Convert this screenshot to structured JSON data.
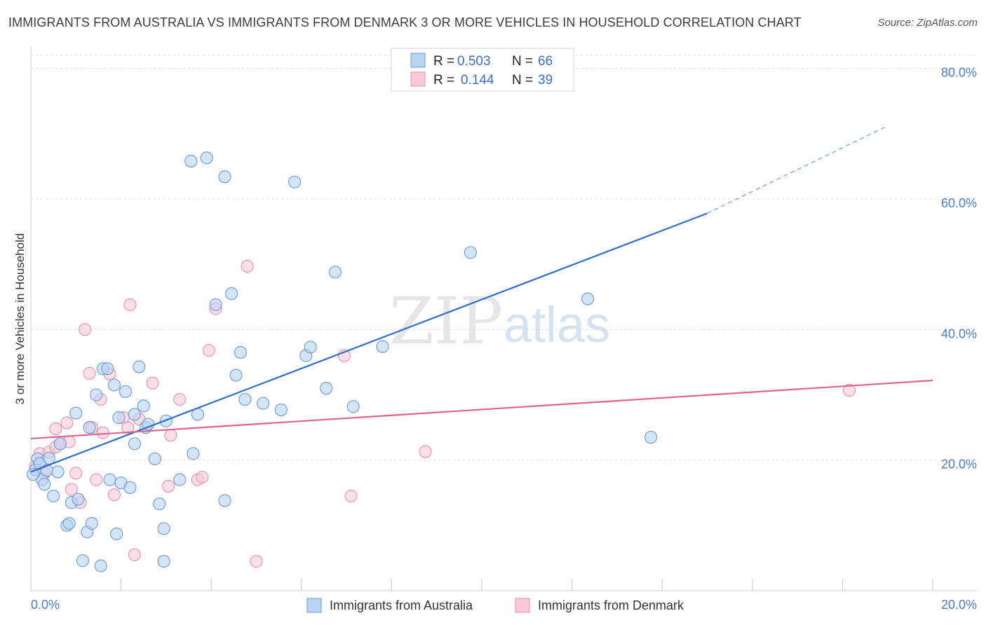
{
  "header": {
    "title": "IMMIGRANTS FROM AUSTRALIA VS IMMIGRANTS FROM DENMARK 3 OR MORE VEHICLES IN HOUSEHOLD CORRELATION CHART",
    "source": "Source: ZipAtlas.com"
  },
  "watermark": {
    "zip": "ZIP",
    "atlas": "atlas"
  },
  "legend": {
    "rows": [
      {
        "r_label": "R =",
        "r_value": "0.503",
        "n_label": "N =",
        "n_value": "66"
      },
      {
        "r_label": "R =",
        "r_value": "0.144",
        "n_label": "N =",
        "n_value": "39"
      }
    ]
  },
  "colors": {
    "australia_fill": "#b9d3f3",
    "australia_stroke": "#6b9ad8",
    "australia_line": "#2e6fd1",
    "denmark_fill": "#f8c9d8",
    "denmark_stroke": "#e990ad",
    "denmark_line": "#e0628f",
    "grid": "#dcdcdc",
    "axis_tick": "#4a7cc9"
  },
  "chart_data": {
    "type": "scatter",
    "title": "IMMIGRANTS FROM AUSTRALIA VS IMMIGRANTS FROM DENMARK 3 OR MORE VEHICLES IN HOUSEHOLD CORRELATION CHART",
    "xlabel": "",
    "ylabel": "3 or more Vehicles in Household",
    "xlim": [
      0,
      20
    ],
    "ylim": [
      0,
      82
    ],
    "x_tick_labels": [
      "0.0%",
      "20.0%"
    ],
    "y_tick_values": [
      20,
      40,
      60,
      80
    ],
    "y_tick_labels": [
      "20.0%",
      "40.0%",
      "60.0%",
      "80.0%"
    ],
    "grid": true,
    "legend_position": "top-center",
    "series": [
      {
        "name": "Immigrants from Australia",
        "r": 0.503,
        "n": 66,
        "trend": {
          "x0": 0,
          "y0": 18.2,
          "x1": 15.0,
          "y1": 57.8,
          "dash_to_x": 19.0,
          "dash_to_y": 71.2
        },
        "points": [
          [
            0.1,
            18.5
          ],
          [
            0.15,
            20.2
          ],
          [
            0.2,
            19.5
          ],
          [
            0.25,
            17.0
          ],
          [
            0.3,
            16.3
          ],
          [
            0.35,
            18.4
          ],
          [
            0.4,
            20.3
          ],
          [
            0.5,
            14.5
          ],
          [
            0.6,
            18.2
          ],
          [
            0.65,
            22.5
          ],
          [
            0.8,
            10.0
          ],
          [
            0.85,
            10.3
          ],
          [
            0.9,
            13.5
          ],
          [
            1.0,
            27.2
          ],
          [
            1.05,
            14.0
          ],
          [
            1.15,
            4.6
          ],
          [
            1.25,
            9.0
          ],
          [
            1.3,
            25.0
          ],
          [
            1.35,
            10.3
          ],
          [
            1.45,
            30.0
          ],
          [
            1.55,
            3.8
          ],
          [
            1.6,
            34.0
          ],
          [
            1.7,
            34.0
          ],
          [
            1.75,
            17.0
          ],
          [
            1.85,
            31.5
          ],
          [
            1.9,
            8.7
          ],
          [
            1.95,
            26.5
          ],
          [
            2.0,
            16.5
          ],
          [
            2.1,
            30.5
          ],
          [
            2.2,
            15.8
          ],
          [
            2.3,
            22.5
          ],
          [
            2.3,
            27.0
          ],
          [
            2.4,
            34.3
          ],
          [
            2.5,
            28.3
          ],
          [
            2.55,
            25.0
          ],
          [
            2.6,
            25.5
          ],
          [
            2.75,
            20.2
          ],
          [
            2.85,
            13.3
          ],
          [
            2.95,
            9.5
          ],
          [
            2.95,
            4.5
          ],
          [
            3.0,
            26.0
          ],
          [
            3.3,
            17.0
          ],
          [
            3.55,
            65.8
          ],
          [
            3.6,
            21.0
          ],
          [
            3.7,
            27.0
          ],
          [
            3.9,
            66.3
          ],
          [
            4.1,
            43.8
          ],
          [
            4.3,
            63.4
          ],
          [
            4.3,
            13.8
          ],
          [
            4.45,
            45.5
          ],
          [
            4.55,
            33.0
          ],
          [
            4.65,
            36.5
          ],
          [
            4.75,
            29.3
          ],
          [
            5.15,
            28.7
          ],
          [
            5.55,
            27.7
          ],
          [
            5.85,
            62.6
          ],
          [
            6.1,
            36.0
          ],
          [
            6.2,
            37.3
          ],
          [
            6.55,
            31.0
          ],
          [
            6.75,
            48.8
          ],
          [
            7.15,
            28.2
          ],
          [
            7.8,
            37.4
          ],
          [
            9.75,
            51.8
          ],
          [
            12.35,
            44.7
          ],
          [
            13.75,
            23.5
          ],
          [
            0.05,
            17.8
          ]
        ]
      },
      {
        "name": "Immigrants from Denmark",
        "r": 0.144,
        "n": 39,
        "trend": {
          "x0": 0,
          "y0": 23.3,
          "x1": 20,
          "y1": 32.2
        },
        "points": [
          [
            0.1,
            19.0
          ],
          [
            0.2,
            21.0
          ],
          [
            0.3,
            18.0
          ],
          [
            0.4,
            21.2
          ],
          [
            0.55,
            22.0
          ],
          [
            0.55,
            24.8
          ],
          [
            0.65,
            22.5
          ],
          [
            0.8,
            25.7
          ],
          [
            0.85,
            22.8
          ],
          [
            0.9,
            15.5
          ],
          [
            1.0,
            18.0
          ],
          [
            1.1,
            13.5
          ],
          [
            1.2,
            40.0
          ],
          [
            1.3,
            33.3
          ],
          [
            1.35,
            25.0
          ],
          [
            1.45,
            17.0
          ],
          [
            1.55,
            29.3
          ],
          [
            1.6,
            24.2
          ],
          [
            1.75,
            33.2
          ],
          [
            1.85,
            14.7
          ],
          [
            2.05,
            26.5
          ],
          [
            2.15,
            25.0
          ],
          [
            2.2,
            43.8
          ],
          [
            2.3,
            5.5
          ],
          [
            2.4,
            26.3
          ],
          [
            2.7,
            31.8
          ],
          [
            3.05,
            16.0
          ],
          [
            3.1,
            23.8
          ],
          [
            3.3,
            29.3
          ],
          [
            3.7,
            17.0
          ],
          [
            3.8,
            17.4
          ],
          [
            3.95,
            36.8
          ],
          [
            4.1,
            43.2
          ],
          [
            4.8,
            49.7
          ],
          [
            5.0,
            4.5
          ],
          [
            6.95,
            36.0
          ],
          [
            7.1,
            14.5
          ],
          [
            8.75,
            21.3
          ],
          [
            18.15,
            30.7
          ]
        ]
      }
    ]
  }
}
